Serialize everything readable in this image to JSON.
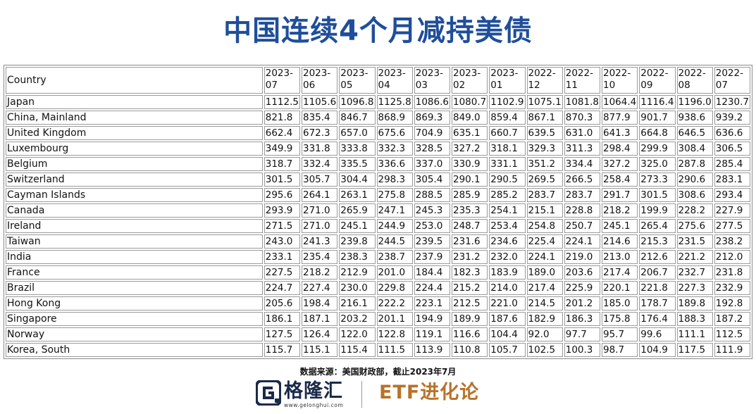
{
  "title": "中国连续4个月减持美债",
  "table": {
    "country_header": "Country",
    "months": [
      "2023-07",
      "2023-06",
      "2023-05",
      "2023-04",
      "2023-03",
      "2023-02",
      "2023-01",
      "2022-12",
      "2022-11",
      "2022-10",
      "2022-09",
      "2022-08",
      "2022-07"
    ],
    "rows": [
      {
        "country": "Japan",
        "values": [
          "1112.5",
          "1105.6",
          "1096.8",
          "1125.8",
          "1086.6",
          "1080.7",
          "1102.9",
          "1075.1",
          "1081.8",
          "1064.4",
          "1116.4",
          "1196.0",
          "1230.7"
        ]
      },
      {
        "country": "China, Mainland",
        "values": [
          "821.8",
          "835.4",
          "846.7",
          "868.9",
          "869.3",
          "849.0",
          "859.4",
          "867.1",
          "870.3",
          "877.9",
          "901.7",
          "938.6",
          "939.2"
        ]
      },
      {
        "country": "United Kingdom",
        "values": [
          "662.4",
          "672.3",
          "657.0",
          "675.6",
          "704.9",
          "635.1",
          "660.7",
          "639.5",
          "631.0",
          "641.3",
          "664.8",
          "646.5",
          "636.6"
        ]
      },
      {
        "country": "Luxembourg",
        "values": [
          "349.9",
          "331.8",
          "333.8",
          "332.3",
          "328.5",
          "327.2",
          "318.1",
          "329.3",
          "311.3",
          "298.4",
          "299.9",
          "308.4",
          "306.5"
        ]
      },
      {
        "country": "Belgium",
        "values": [
          "318.7",
          "332.4",
          "335.5",
          "336.6",
          "337.0",
          "330.9",
          "331.1",
          "351.2",
          "334.4",
          "327.2",
          "325.0",
          "287.8",
          "285.4"
        ]
      },
      {
        "country": "Switzerland",
        "values": [
          "301.5",
          "305.7",
          "304.4",
          "298.3",
          "305.4",
          "290.1",
          "290.5",
          "269.5",
          "266.5",
          "258.4",
          "273.3",
          "290.6",
          "283.1"
        ]
      },
      {
        "country": "Cayman Islands",
        "values": [
          "295.6",
          "264.1",
          "263.1",
          "275.8",
          "288.5",
          "285.9",
          "285.2",
          "283.7",
          "283.7",
          "291.7",
          "301.5",
          "308.6",
          "293.4"
        ]
      },
      {
        "country": "Canada",
        "values": [
          "293.9",
          "271.0",
          "265.9",
          "247.1",
          "245.3",
          "235.3",
          "254.1",
          "215.1",
          "228.8",
          "218.2",
          "199.9",
          "228.2",
          "227.9"
        ]
      },
      {
        "country": "Ireland",
        "values": [
          "271.5",
          "271.0",
          "245.1",
          "244.9",
          "253.0",
          "248.7",
          "253.4",
          "254.8",
          "250.7",
          "245.1",
          "265.4",
          "275.6",
          "277.5"
        ]
      },
      {
        "country": "Taiwan",
        "values": [
          "243.0",
          "241.3",
          "239.8",
          "244.5",
          "239.5",
          "231.6",
          "234.6",
          "225.4",
          "224.1",
          "214.6",
          "215.3",
          "231.5",
          "238.2"
        ]
      },
      {
        "country": "India",
        "values": [
          "233.1",
          "235.4",
          "238.3",
          "238.7",
          "237.9",
          "231.2",
          "232.0",
          "224.1",
          "219.0",
          "213.0",
          "212.6",
          "221.2",
          "212.0"
        ]
      },
      {
        "country": "France",
        "values": [
          "227.5",
          "218.2",
          "212.9",
          "201.0",
          "184.4",
          "182.3",
          "183.9",
          "189.0",
          "203.6",
          "217.4",
          "206.7",
          "232.7",
          "231.8"
        ]
      },
      {
        "country": "Brazil",
        "values": [
          "224.7",
          "227.4",
          "230.0",
          "229.8",
          "224.4",
          "215.2",
          "214.0",
          "217.4",
          "225.9",
          "220.1",
          "221.8",
          "227.3",
          "232.9"
        ]
      },
      {
        "country": "Hong Kong",
        "values": [
          "205.6",
          "198.4",
          "216.1",
          "222.2",
          "223.1",
          "212.5",
          "221.0",
          "214.5",
          "201.2",
          "185.0",
          "178.7",
          "189.8",
          "192.8"
        ]
      },
      {
        "country": "Singapore",
        "values": [
          "186.1",
          "187.1",
          "203.2",
          "201.1",
          "194.9",
          "189.9",
          "187.6",
          "182.9",
          "186.3",
          "175.8",
          "176.4",
          "188.3",
          "187.2"
        ]
      },
      {
        "country": "Norway",
        "values": [
          "127.5",
          "126.4",
          "122.0",
          "122.8",
          "119.1",
          "116.6",
          "104.4",
          "92.0",
          "97.7",
          "95.7",
          "99.6",
          "111.1",
          "112.5"
        ]
      },
      {
        "country": "Korea, South",
        "values": [
          "115.7",
          "115.1",
          "115.4",
          "111.5",
          "113.9",
          "110.8",
          "105.7",
          "102.5",
          "100.3",
          "98.7",
          "104.9",
          "117.5",
          "111.9"
        ]
      }
    ]
  },
  "source": "数据来源：美国财政部，截止2023年7月",
  "footer": {
    "logo_left_text": "格隆汇",
    "logo_left_url": "www.gelonghui.com",
    "logo_left_icon": "gelonghui-logo-icon",
    "logo_right_text": "ETF进化论"
  },
  "colors": {
    "title": "#1f4e9a",
    "logo_right": "#b8722a",
    "logo_left": "#1a2a4a"
  }
}
